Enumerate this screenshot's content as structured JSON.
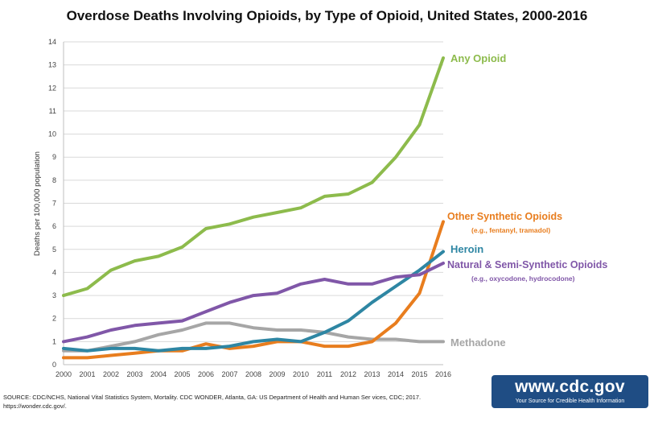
{
  "chart_data": {
    "type": "line",
    "title": "Overdose Deaths Involving Opioids, by Type of Opioid, United States, 2000-2016",
    "ylabel": "Deaths per 100,000 population",
    "xlabel": "",
    "ylim": [
      0,
      14
    ],
    "x": [
      "2000",
      "2001",
      "2002",
      "2003",
      "2004",
      "2005",
      "2006",
      "2007",
      "2008",
      "2009",
      "2010",
      "2011",
      "2012",
      "2013",
      "2014",
      "2015",
      "2016"
    ],
    "yticks": [
      "0",
      "1",
      "2",
      "3",
      "4",
      "5",
      "6",
      "7",
      "8",
      "9",
      "10",
      "11",
      "12",
      "13",
      "14"
    ],
    "grid": true,
    "series": [
      {
        "name": "Any Opioid",
        "sub": "",
        "color": "#8dbb4c",
        "values": [
          3.0,
          3.3,
          4.1,
          4.5,
          4.7,
          5.1,
          5.9,
          6.1,
          6.4,
          6.6,
          6.8,
          7.3,
          7.4,
          7.9,
          9.0,
          10.4,
          13.3
        ]
      },
      {
        "name": "Other Synthetic Opioids",
        "sub": "(e.g., fentanyl, tramadol)",
        "color": "#e87d1e",
        "values": [
          0.3,
          0.3,
          0.4,
          0.5,
          0.6,
          0.6,
          0.9,
          0.7,
          0.8,
          1.0,
          1.0,
          0.8,
          0.8,
          1.0,
          1.8,
          3.1,
          6.2
        ]
      },
      {
        "name": "Heroin",
        "sub": "",
        "color": "#2e86a3",
        "values": [
          0.7,
          0.6,
          0.7,
          0.7,
          0.6,
          0.7,
          0.7,
          0.8,
          1.0,
          1.1,
          1.0,
          1.4,
          1.9,
          2.7,
          3.4,
          4.1,
          4.9
        ]
      },
      {
        "name": "Natural & Semi-Synthetic Opioids",
        "sub": "(e.g., oxycodone, hydrocodone)",
        "color": "#8057a8",
        "values": [
          1.0,
          1.2,
          1.5,
          1.7,
          1.8,
          1.9,
          2.3,
          2.7,
          3.0,
          3.1,
          3.5,
          3.7,
          3.5,
          3.5,
          3.8,
          3.9,
          4.4
        ]
      },
      {
        "name": "Methadone",
        "sub": "",
        "color": "#a6a6a6",
        "values": [
          0.6,
          0.6,
          0.8,
          1.0,
          1.3,
          1.5,
          1.8,
          1.8,
          1.6,
          1.5,
          1.5,
          1.4,
          1.2,
          1.1,
          1.1,
          1.0,
          1.0
        ]
      }
    ]
  },
  "source": "SOURCE: CDC/NCHS, National Vital Statistics System, Mortality. CDC WONDER, Atlanta, GA: US Department of Health and Human Ser vices, CDC; 2017. https://wonder.cdc.gov/.",
  "logo": {
    "url": "www.cdc.gov",
    "tagline": "Your Source for Credible Health Information"
  }
}
